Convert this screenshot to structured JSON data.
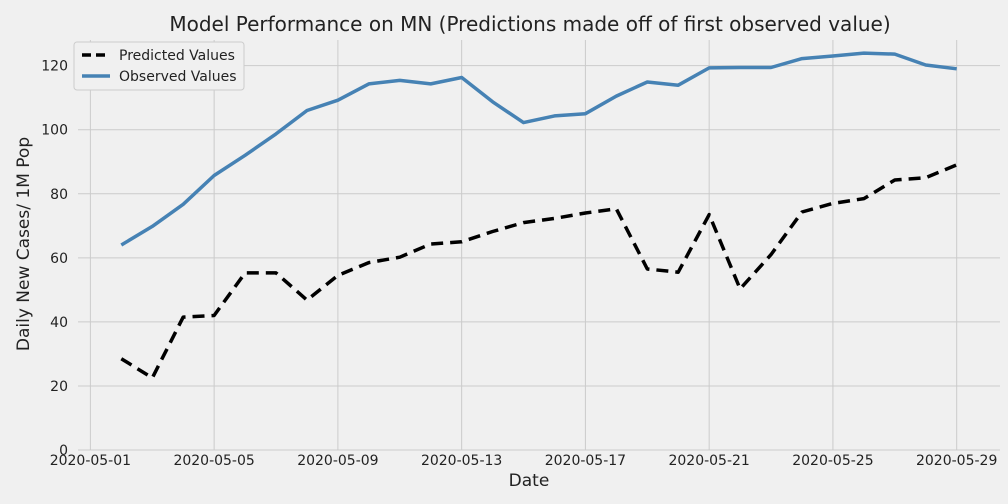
{
  "chart_data": {
    "type": "line",
    "title": "Model Performance on MN (Predictions made off of first observed value)",
    "xlabel": "Date",
    "ylabel": "Daily New Cases/ 1M Pop",
    "ylim": [
      0,
      128
    ],
    "yticks": [
      0,
      20,
      40,
      60,
      80,
      100,
      120
    ],
    "xticks": [
      "2020-05-01",
      "2020-05-05",
      "2020-05-09",
      "2020-05-13",
      "2020-05-17",
      "2020-05-21",
      "2020-05-25",
      "2020-05-29"
    ],
    "x": [
      "2020-05-02",
      "2020-05-03",
      "2020-05-04",
      "2020-05-05",
      "2020-05-06",
      "2020-05-07",
      "2020-05-08",
      "2020-05-09",
      "2020-05-10",
      "2020-05-11",
      "2020-05-12",
      "2020-05-13",
      "2020-05-14",
      "2020-05-15",
      "2020-05-16",
      "2020-05-17",
      "2020-05-18",
      "2020-05-19",
      "2020-05-20",
      "2020-05-21",
      "2020-05-22",
      "2020-05-23",
      "2020-05-24",
      "2020-05-25",
      "2020-05-26",
      "2020-05-27",
      "2020-05-28",
      "2020-05-29"
    ],
    "grid": true,
    "legend_position": "top-left",
    "series": [
      {
        "name": "Predicted Values",
        "color": "#000000",
        "style": "dashed",
        "values": [
          28.5,
          22.5,
          41.5,
          42,
          55.3,
          55.3,
          46.8,
          54.5,
          58.5,
          60.2,
          64.3,
          65,
          68.2,
          71,
          72.3,
          74,
          75.3,
          56.5,
          55.5,
          73.5,
          50.3,
          61,
          74.3,
          77,
          78.5,
          84.3,
          85,
          89
        ]
      },
      {
        "name": "Observed Values",
        "color": "#4682b4",
        "style": "solid",
        "values": [
          64,
          69.8,
          76.7,
          85.7,
          92,
          98.7,
          106,
          109.2,
          114.3,
          115.4,
          114.3,
          116.3,
          108.7,
          102.2,
          104.3,
          105,
          110.5,
          114.9,
          113.9,
          119.3,
          119.4,
          119.4,
          122.2,
          123,
          123.9,
          123.6,
          120.2,
          119
        ]
      }
    ]
  }
}
